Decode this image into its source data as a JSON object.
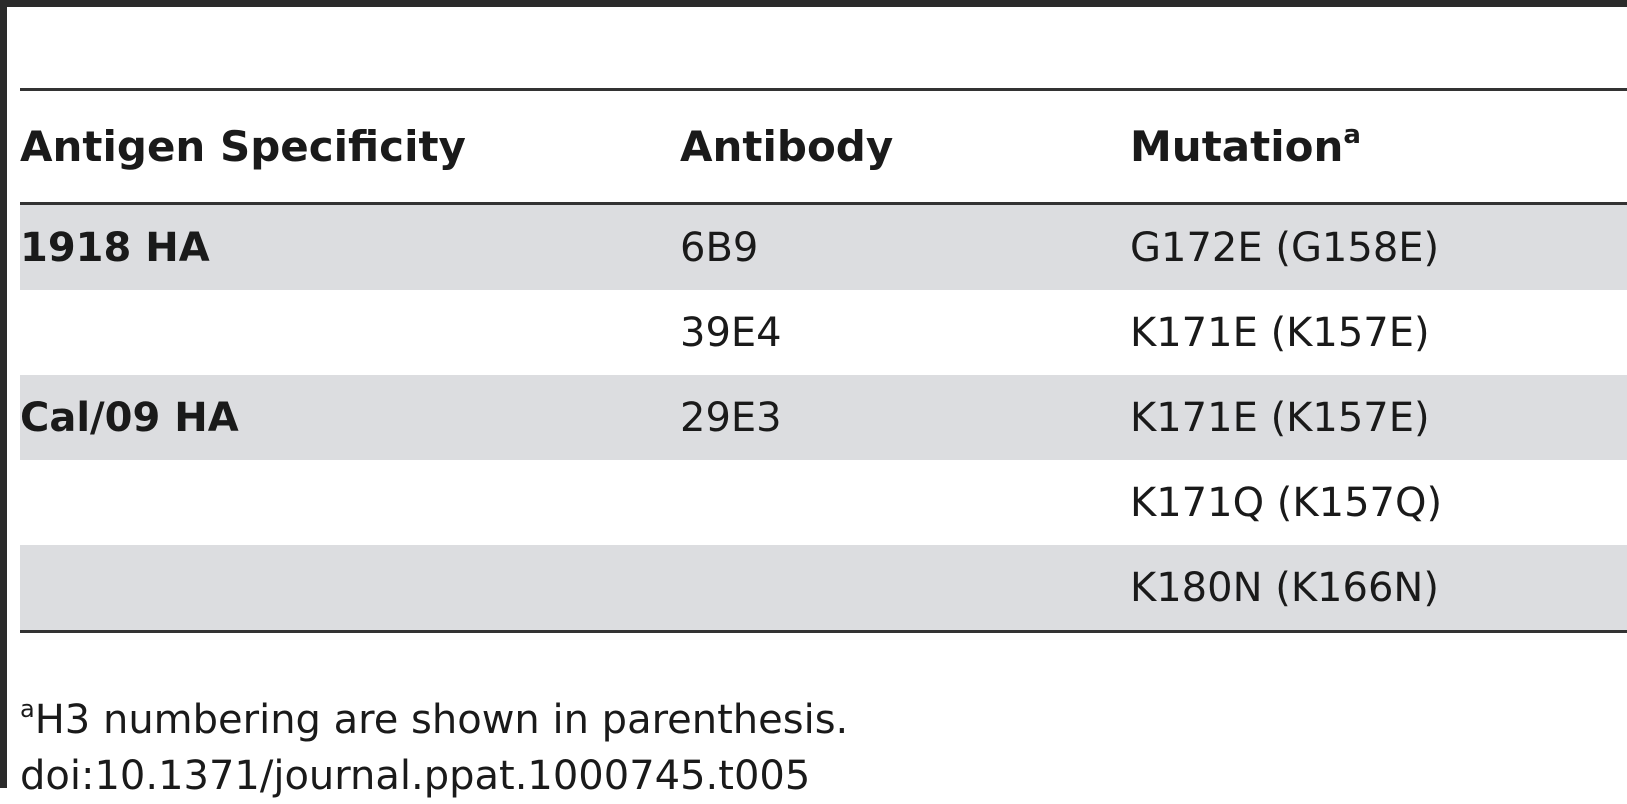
{
  "table": {
    "headers": [
      {
        "text": "Antigen Specificity",
        "sup": ""
      },
      {
        "text": "Antibody",
        "sup": ""
      },
      {
        "text": "Mutation",
        "sup": "a"
      }
    ],
    "rows": [
      {
        "antigen": "1918 HA",
        "antibody": "6B9",
        "mutation": "G172E (G158E)"
      },
      {
        "antigen": "",
        "antibody": "39E4",
        "mutation": "K171E (K157E)"
      },
      {
        "antigen": "Cal/09 HA",
        "antibody": "29E3",
        "mutation": "K171E (K157E)"
      },
      {
        "antigen": "",
        "antibody": "",
        "mutation": "K171Q (K157Q)"
      },
      {
        "antigen": "",
        "antibody": "",
        "mutation": "K180N (K166N)"
      }
    ]
  },
  "footnote": {
    "marker": "a",
    "text": "H3 numbering are shown in parenthesis."
  },
  "doi": "doi:10.1371/journal.ppat.1000745.t005",
  "colors": {
    "row_shade": "#dcdde0",
    "rule": "#333333",
    "frame": "#2b2b2b"
  }
}
